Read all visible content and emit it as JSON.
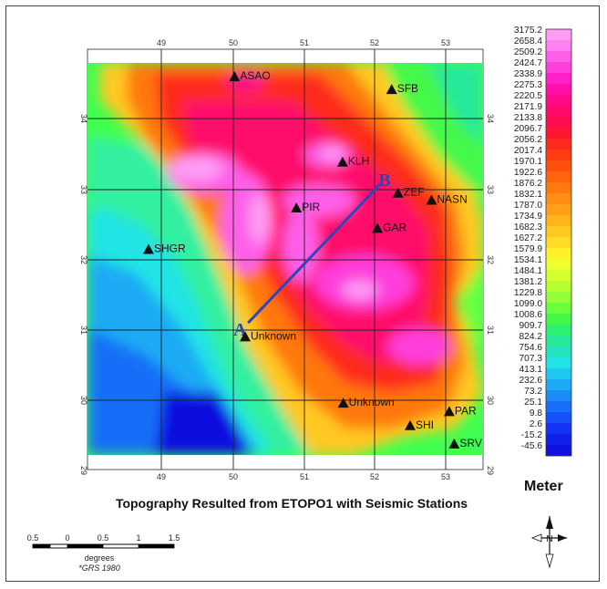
{
  "map": {
    "title": "Topography Resulted from ETOPO1 with Seismic Stations",
    "legend_title": "Meter",
    "legend_values": [
      "3175.2",
      "2658.4",
      "2509.2",
      "2424.7",
      "2338.9",
      "2275.3",
      "2220.5",
      "2171.9",
      "2133.8",
      "2096.7",
      "2056.2",
      "2017.4",
      "1970.1",
      "1922.6",
      "1876.2",
      "1832.1",
      "1787.0",
      "1734.9",
      "1682.3",
      "1627.2",
      "1579.9",
      "1534.1",
      "1484.1",
      "1381.2",
      "1229.8",
      "1099.0",
      "1008.6",
      "909.7",
      "824.2",
      "754.6",
      "707.3",
      "413.1",
      "232.6",
      "73.2",
      "25.1",
      "9.8",
      "2.6",
      "-15.2",
      "-45.6"
    ],
    "legend_colors": [
      "#ff9cf5",
      "#ff80f0",
      "#ff5ee8",
      "#ff3edb",
      "#ff20c8",
      "#ff10a8",
      "#ff0a88",
      "#ff0a6a",
      "#ff0c4e",
      "#ff1632",
      "#ff2a1e",
      "#ff3d14",
      "#ff5010",
      "#ff6410",
      "#ff7810",
      "#ff8c14",
      "#ffa018",
      "#ffb41c",
      "#ffc820",
      "#ffdc24",
      "#fff02a",
      "#f0ff2e",
      "#d6ff30",
      "#b8ff32",
      "#94ff38",
      "#6cff3e",
      "#44f848",
      "#2ef070",
      "#28e89a",
      "#24e4c0",
      "#20e4e4",
      "#1ec8f0",
      "#1caaf4",
      "#1a8cf6",
      "#186ef8",
      "#1650f8",
      "#1434f4",
      "#1220ec",
      "#1010e0"
    ],
    "x_ticks": [
      "49",
      "50",
      "51",
      "52",
      "53"
    ],
    "y_ticks": [
      "34",
      "33",
      "32",
      "31",
      "30",
      "29"
    ],
    "stations": [
      {
        "name": "ASAO",
        "lon": 50.03,
        "lat": 34.58
      },
      {
        "name": "SFB",
        "lon": 52.24,
        "lat": 34.4
      },
      {
        "name": "KLH",
        "lon": 51.55,
        "lat": 33.37
      },
      {
        "name": "ZEF",
        "lon": 52.33,
        "lat": 32.93
      },
      {
        "name": "NASN",
        "lon": 52.8,
        "lat": 32.83
      },
      {
        "name": "PIR",
        "lon": 50.9,
        "lat": 32.72
      },
      {
        "name": "GAR",
        "lon": 52.04,
        "lat": 32.43
      },
      {
        "name": "SHGR",
        "lon": 48.82,
        "lat": 32.13
      },
      {
        "name": "Unknown",
        "lon": 50.18,
        "lat": 30.89
      },
      {
        "name": "Unknown",
        "lon": 51.56,
        "lat": 29.95
      },
      {
        "name": "PAR",
        "lon": 53.05,
        "lat": 29.83
      },
      {
        "name": "SHI",
        "lon": 52.5,
        "lat": 29.63
      },
      {
        "name": "SRV",
        "lon": 53.12,
        "lat": 29.37
      }
    ],
    "profile": {
      "a_label": "A",
      "b_label": "B",
      "a": {
        "lon": 50.22,
        "lat": 31.1
      },
      "b": {
        "lon": 52.08,
        "lat": 33.07
      }
    },
    "scale_bar": {
      "labels": [
        "0.5",
        "0",
        "0.5",
        "1",
        "1.5"
      ],
      "unit": "degrees",
      "note": "*GRS 1980"
    },
    "north_arrow": {
      "label": "N"
    }
  }
}
